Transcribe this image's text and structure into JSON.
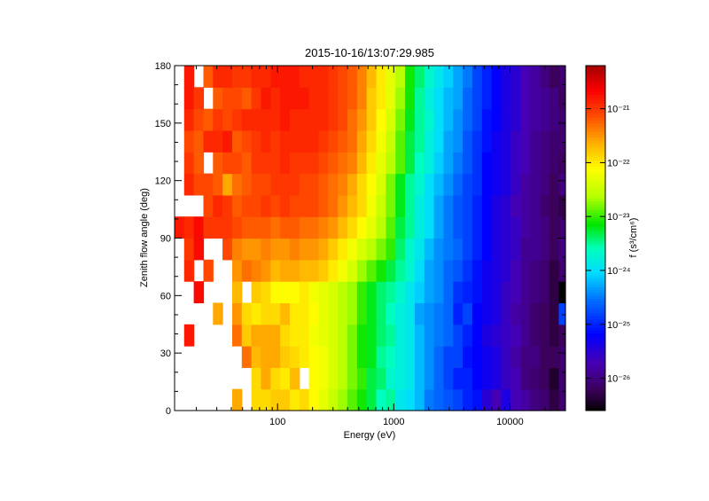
{
  "chart_data": {
    "type": "heatmap",
    "title": "2015-10-16/13:07:29.985",
    "xlabel": "Energy (eV)",
    "ylabel": "Zenith flow angle (deg)",
    "x_scale": "log",
    "xlim": [
      13,
      30000
    ],
    "ylim": [
      0,
      180
    ],
    "x_ticks": [
      {
        "value": 100,
        "label": "100"
      },
      {
        "value": 1000,
        "label": "1000"
      },
      {
        "value": 10000,
        "label": "10000"
      }
    ],
    "y_ticks": [
      {
        "value": 0,
        "label": "0"
      },
      {
        "value": 30,
        "label": "30"
      },
      {
        "value": 60,
        "label": "60"
      },
      {
        "value": 90,
        "label": "90"
      },
      {
        "value": 120,
        "label": "120"
      },
      {
        "value": 150,
        "label": "150"
      },
      {
        "value": 180,
        "label": "180"
      }
    ],
    "colorbar": {
      "label": "f (s³/cm⁶)",
      "scale": "log",
      "range_log10": [
        -26.6,
        -20.2
      ],
      "ticks": [
        {
          "value": -21,
          "label": "10⁻²¹"
        },
        {
          "value": -22,
          "label": "10⁻²²"
        },
        {
          "value": -23,
          "label": "10⁻²³"
        },
        {
          "value": -24,
          "label": "10⁻²⁴"
        },
        {
          "value": -25,
          "label": "10⁻²⁵"
        },
        {
          "value": -26,
          "label": "10⁻²⁶"
        }
      ]
    },
    "energy_edges_eV": [
      13,
      15.7,
      19,
      23,
      27.8,
      33.6,
      40.7,
      49.2,
      59.5,
      72,
      87.1,
      105.3,
      127.4,
      154.1,
      186.4,
      225.5,
      272.8,
      330,
      399.2,
      482.9,
      584.2,
      706.7,
      854.9,
      1034.2,
      1251.1,
      1513.4,
      1830.8,
      2214.7,
      2679.1,
      3240.9,
      3920.6,
      4742.8,
      5737.3,
      6940.4,
      8395.7,
      10156.2,
      12285.9,
      14862.2,
      17978.8,
      21749,
      26309.6,
      30000
    ],
    "angle_edges_deg": [
      0,
      11.25,
      22.5,
      33.75,
      45,
      56.25,
      67.5,
      78.75,
      90,
      101.25,
      112.5,
      123.75,
      135,
      146.25,
      157.5,
      168.75,
      180
    ],
    "values_note": "log10 of f; rows from 0 deg (first) to 180 deg (last); null = no data",
    "values_log10": [
      [
        null,
        null,
        null,
        null,
        null,
        null,
        -21.6,
        null,
        -21.9,
        -21.9,
        -21.8,
        -21.8,
        -22.0,
        -21.9,
        -22.1,
        -22.3,
        -22.5,
        -22.7,
        -22.9,
        -23.1,
        -23.3,
        -23.6,
        -23.5,
        -23.9,
        -24.0,
        -24.2,
        -24.5,
        -24.6,
        -24.7,
        -24.8,
        -25.0,
        -25.1,
        -25.5,
        -25.7,
        -25.4,
        -25.7,
        -25.8,
        -26.0,
        -26.1,
        -26.3,
        -26.1
      ],
      [
        null,
        null,
        null,
        null,
        null,
        null,
        null,
        null,
        -21.9,
        -21.6,
        -21.9,
        -22.0,
        -21.7,
        null,
        -22.1,
        -22.2,
        -22.4,
        -22.6,
        -22.8,
        -23.0,
        -23.3,
        -23.4,
        -23.7,
        -23.8,
        -23.9,
        -24.2,
        -24.4,
        -24.6,
        -24.8,
        -25.0,
        -25.0,
        -25.2,
        -25.3,
        -25.4,
        -25.6,
        -25.7,
        -26.0,
        -26.1,
        -26.2,
        -26.4,
        -26.1
      ],
      [
        null,
        null,
        null,
        null,
        null,
        null,
        null,
        -21.3,
        -21.7,
        -21.6,
        -21.6,
        -21.8,
        -21.9,
        -22.0,
        -22.1,
        -22.2,
        -22.4,
        -22.6,
        -22.8,
        -23.1,
        -23.2,
        -23.5,
        -23.6,
        -23.8,
        -23.9,
        -24.2,
        -24.4,
        -24.6,
        -24.8,
        -24.8,
        -25.1,
        -25.2,
        -25.3,
        -25.4,
        -25.6,
        -25.8,
        -26.0,
        -26.0,
        -26.2,
        -26.2,
        -26.1
      ],
      [
        null,
        -20.8,
        null,
        null,
        null,
        null,
        -21.3,
        -21.8,
        -21.6,
        -21.6,
        -21.6,
        -21.9,
        -22.0,
        -22.0,
        -22.2,
        -22.3,
        -22.4,
        -22.6,
        -22.8,
        -23.1,
        -23.2,
        -23.4,
        -23.5,
        -23.8,
        -23.9,
        -24.2,
        -24.4,
        -24.5,
        -24.6,
        -24.8,
        -25.0,
        -25.2,
        -25.4,
        -25.5,
        -25.6,
        -25.7,
        -25.9,
        -26.1,
        -26.2,
        -26.3,
        -26.2
      ],
      [
        null,
        null,
        null,
        null,
        -21.6,
        null,
        -21.5,
        -21.9,
        -22.0,
        -21.9,
        -21.9,
        -21.7,
        -22.0,
        -22.0,
        -22.1,
        -22.3,
        -22.4,
        -22.6,
        -22.7,
        -23.0,
        -23.2,
        -23.4,
        -23.6,
        -23.8,
        -23.9,
        -24.3,
        -24.4,
        -24.5,
        -24.6,
        -25.0,
        -24.8,
        -25.2,
        -25.3,
        -25.4,
        -25.6,
        -25.8,
        -25.9,
        -26.1,
        -26.2,
        -26.3,
        -24.8
      ],
      [
        null,
        null,
        -20.7,
        null,
        null,
        null,
        -21.7,
        null,
        -21.8,
        -21.9,
        -22.1,
        -22.1,
        -22.1,
        -22.0,
        -22.2,
        -22.3,
        -22.4,
        -22.6,
        -22.7,
        -23.0,
        -23.2,
        -23.4,
        -23.5,
        -23.7,
        -23.9,
        -24.1,
        -24.3,
        -24.4,
        -24.6,
        -24.9,
        -25.0,
        -25.1,
        -25.3,
        -25.4,
        -25.6,
        -25.7,
        -25.9,
        -26.0,
        -26.1,
        -26.3,
        -26.6
      ],
      [
        null,
        -20.9,
        null,
        -21.1,
        null,
        null,
        -21.5,
        -21.3,
        -21.4,
        -21.5,
        -21.7,
        -21.6,
        -21.6,
        -21.7,
        -21.7,
        -21.8,
        -22.0,
        -22.2,
        -22.4,
        -22.7,
        -22.9,
        -23.1,
        -23.3,
        -23.5,
        -23.7,
        -24.0,
        -24.3,
        -24.4,
        -24.6,
        -24.7,
        -24.9,
        -25.1,
        -25.3,
        -25.4,
        -25.5,
        -25.7,
        -25.9,
        -26.0,
        -26.1,
        -26.3,
        -26.1
      ],
      [
        null,
        -21.0,
        -20.7,
        null,
        null,
        -21.1,
        -21.4,
        -21.5,
        -21.5,
        -21.4,
        -21.5,
        -21.5,
        -21.4,
        -21.5,
        -21.5,
        -21.6,
        -21.8,
        -22.0,
        -22.2,
        -22.4,
        -22.6,
        -22.8,
        -23.0,
        -23.4,
        -23.7,
        -23.9,
        -24.2,
        -24.4,
        -24.5,
        -24.6,
        -24.8,
        -25.0,
        -25.2,
        -25.4,
        -25.5,
        -25.6,
        -25.9,
        -25.9,
        -26.0,
        -26.2,
        -26.0
      ],
      [
        -20.8,
        -20.9,
        -20.7,
        -21.0,
        -21.0,
        -21.0,
        -21.1,
        -21.2,
        -21.2,
        -21.2,
        -21.3,
        -21.2,
        -21.2,
        -21.3,
        -21.3,
        -21.4,
        -21.5,
        -21.7,
        -21.9,
        -22.1,
        -22.3,
        -22.6,
        -22.9,
        -23.3,
        -23.5,
        -23.8,
        -24.0,
        -24.3,
        -24.5,
        -24.7,
        -24.8,
        -25.0,
        -25.2,
        -25.4,
        -25.5,
        -25.6,
        -25.8,
        -25.9,
        -26.0,
        -26.2,
        -26.1
      ],
      [
        null,
        null,
        null,
        -21.1,
        -20.9,
        -21.0,
        -21.2,
        -21.1,
        -21.1,
        -21.0,
        -21.1,
        -21.0,
        -21.1,
        -21.1,
        -21.1,
        -21.2,
        -21.3,
        -21.5,
        -21.7,
        -21.9,
        -22.2,
        -22.5,
        -22.8,
        -23.2,
        -23.5,
        -23.8,
        -24.0,
        -24.3,
        -24.5,
        -24.7,
        -24.8,
        -25.0,
        -25.2,
        -25.4,
        -25.5,
        -25.7,
        -25.8,
        -25.9,
        -26.1,
        -26.2,
        -26.3
      ],
      [
        null,
        -20.9,
        -21.1,
        -21.1,
        -21.2,
        -21.6,
        -21.3,
        -21.2,
        -21.1,
        -21.1,
        -21.0,
        -21.0,
        -21.0,
        -21.1,
        -21.1,
        -21.2,
        -21.3,
        -21.4,
        -21.6,
        -21.9,
        -22.1,
        -22.4,
        -22.8,
        -23.2,
        -23.5,
        -23.7,
        -24.0,
        -24.2,
        -24.4,
        -24.6,
        -24.8,
        -24.9,
        -25.2,
        -25.3,
        -25.4,
        -25.6,
        -25.8,
        -25.9,
        -26.0,
        -26.2,
        -26.0
      ],
      [
        null,
        -21.0,
        -21.2,
        null,
        -21.2,
        -21.1,
        -21.1,
        -21.2,
        -21.0,
        -21.0,
        -21.0,
        -20.9,
        -21.0,
        -21.0,
        -21.0,
        -21.1,
        -21.2,
        -21.3,
        -21.4,
        -21.7,
        -22.0,
        -22.3,
        -22.6,
        -22.9,
        -23.3,
        -23.6,
        -23.8,
        -24.1,
        -24.3,
        -24.5,
        -24.7,
        -24.9,
        -25.2,
        -25.3,
        -25.4,
        -25.6,
        -25.7,
        -25.9,
        -26.0,
        -26.1,
        -26.2
      ],
      [
        null,
        -21.1,
        -21.2,
        -20.9,
        -20.9,
        -20.8,
        -21.2,
        -21.1,
        -21.0,
        -20.9,
        -21.0,
        -20.9,
        -20.9,
        -20.9,
        -20.9,
        -21.0,
        -21.1,
        -21.2,
        -21.3,
        -21.6,
        -21.9,
        -22.2,
        -22.5,
        -22.9,
        -23.3,
        -23.5,
        -23.8,
        -24.0,
        -24.3,
        -24.4,
        -24.7,
        -24.9,
        -25.1,
        -25.3,
        -25.4,
        -25.6,
        -25.7,
        -25.9,
        -26.0,
        -26.1,
        -26.1
      ],
      [
        null,
        -20.9,
        -21.1,
        -21.2,
        -21.0,
        -21.1,
        -21.0,
        -20.9,
        -20.9,
        -20.9,
        -20.9,
        -20.8,
        -20.9,
        -20.9,
        -20.9,
        -20.9,
        -21.0,
        -21.1,
        -21.3,
        -21.5,
        -21.8,
        -22.1,
        -22.4,
        -22.8,
        -23.2,
        -23.5,
        -23.7,
        -24.0,
        -24.2,
        -24.4,
        -24.6,
        -24.8,
        -25.1,
        -25.2,
        -25.4,
        -25.5,
        -25.7,
        -25.8,
        -25.9,
        -26.0,
        -26.1
      ],
      [
        null,
        -20.8,
        -21.0,
        null,
        -21.2,
        -21.1,
        -21.1,
        -21.2,
        -21.0,
        -20.8,
        -20.9,
        -20.8,
        -20.8,
        -20.8,
        -20.9,
        -20.9,
        -21.0,
        -21.1,
        -21.2,
        -21.4,
        -21.8,
        -22.0,
        -22.3,
        -22.7,
        -23.1,
        -23.5,
        -23.8,
        -24.0,
        -24.2,
        -24.3,
        -24.6,
        -24.8,
        -25.0,
        -25.2,
        -25.4,
        -25.5,
        -25.7,
        -25.8,
        -25.9,
        -26.0,
        -26.2
      ],
      [
        null,
        -20.8,
        null,
        -21.2,
        -20.9,
        -20.9,
        -21.0,
        -21.0,
        -20.9,
        -20.9,
        -20.8,
        -20.8,
        -20.8,
        -20.9,
        -20.9,
        -20.9,
        -21.0,
        -21.1,
        -21.2,
        -21.4,
        -21.7,
        -22.0,
        -22.3,
        -22.6,
        -23.1,
        -23.4,
        -23.7,
        -23.9,
        -24.1,
        -24.3,
        -24.5,
        -24.8,
        -25.0,
        -25.2,
        -25.4,
        -25.5,
        -25.7,
        -25.8,
        -26.0,
        -26.2,
        -26.1
      ]
    ]
  }
}
